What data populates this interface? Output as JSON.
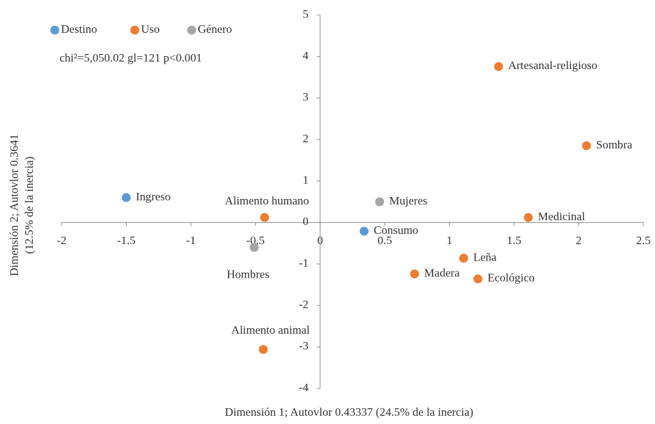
{
  "chart_data": {
    "type": "scatter",
    "x_label": "Dimensión 1; Autovlor 0.43337 (24.5% de la inercia)",
    "y_label": [
      "Dimensión 2; Autovlor 0.3641",
      "(12.5% de la inercia)"
    ],
    "annotation": "chi²=5,050.02 gl=121 p<0.001",
    "xlim": [
      -2,
      2.5
    ],
    "ylim": [
      -4,
      5
    ],
    "xticks": [
      -2,
      -1.5,
      -1,
      -0.5,
      0,
      0.5,
      1,
      1.5,
      2,
      2.5
    ],
    "yticks": [
      -4,
      -3,
      -2,
      -1,
      0,
      1,
      2,
      3,
      4,
      5
    ],
    "legend": "top-left",
    "series": [
      {
        "name": "Destino",
        "color": "#5b9bd5",
        "labels": [
          "Ingreso",
          "Consumo"
        ],
        "x": [
          -1.5,
          0.34
        ],
        "values": [
          0.6,
          -0.21
        ]
      },
      {
        "name": "Uso",
        "color": "#ed7d31",
        "labels": [
          "Alimento humano",
          "Alimento animal",
          "Artesanal-religioso",
          "Sombra",
          "Medicinal",
          "Leña",
          "Madera",
          "Ecológico"
        ],
        "x": [
          -0.43,
          -0.44,
          1.38,
          2.06,
          1.61,
          1.11,
          0.73,
          1.22
        ],
        "values": [
          0.12,
          -3.06,
          3.76,
          1.85,
          0.12,
          -0.86,
          -1.24,
          -1.36
        ]
      },
      {
        "name": "Género",
        "color": "#a5a5a5",
        "labels": [
          "Mujeres",
          "Hombres"
        ],
        "x": [
          0.46,
          -0.51
        ],
        "values": [
          0.5,
          -0.6
        ]
      }
    ]
  }
}
